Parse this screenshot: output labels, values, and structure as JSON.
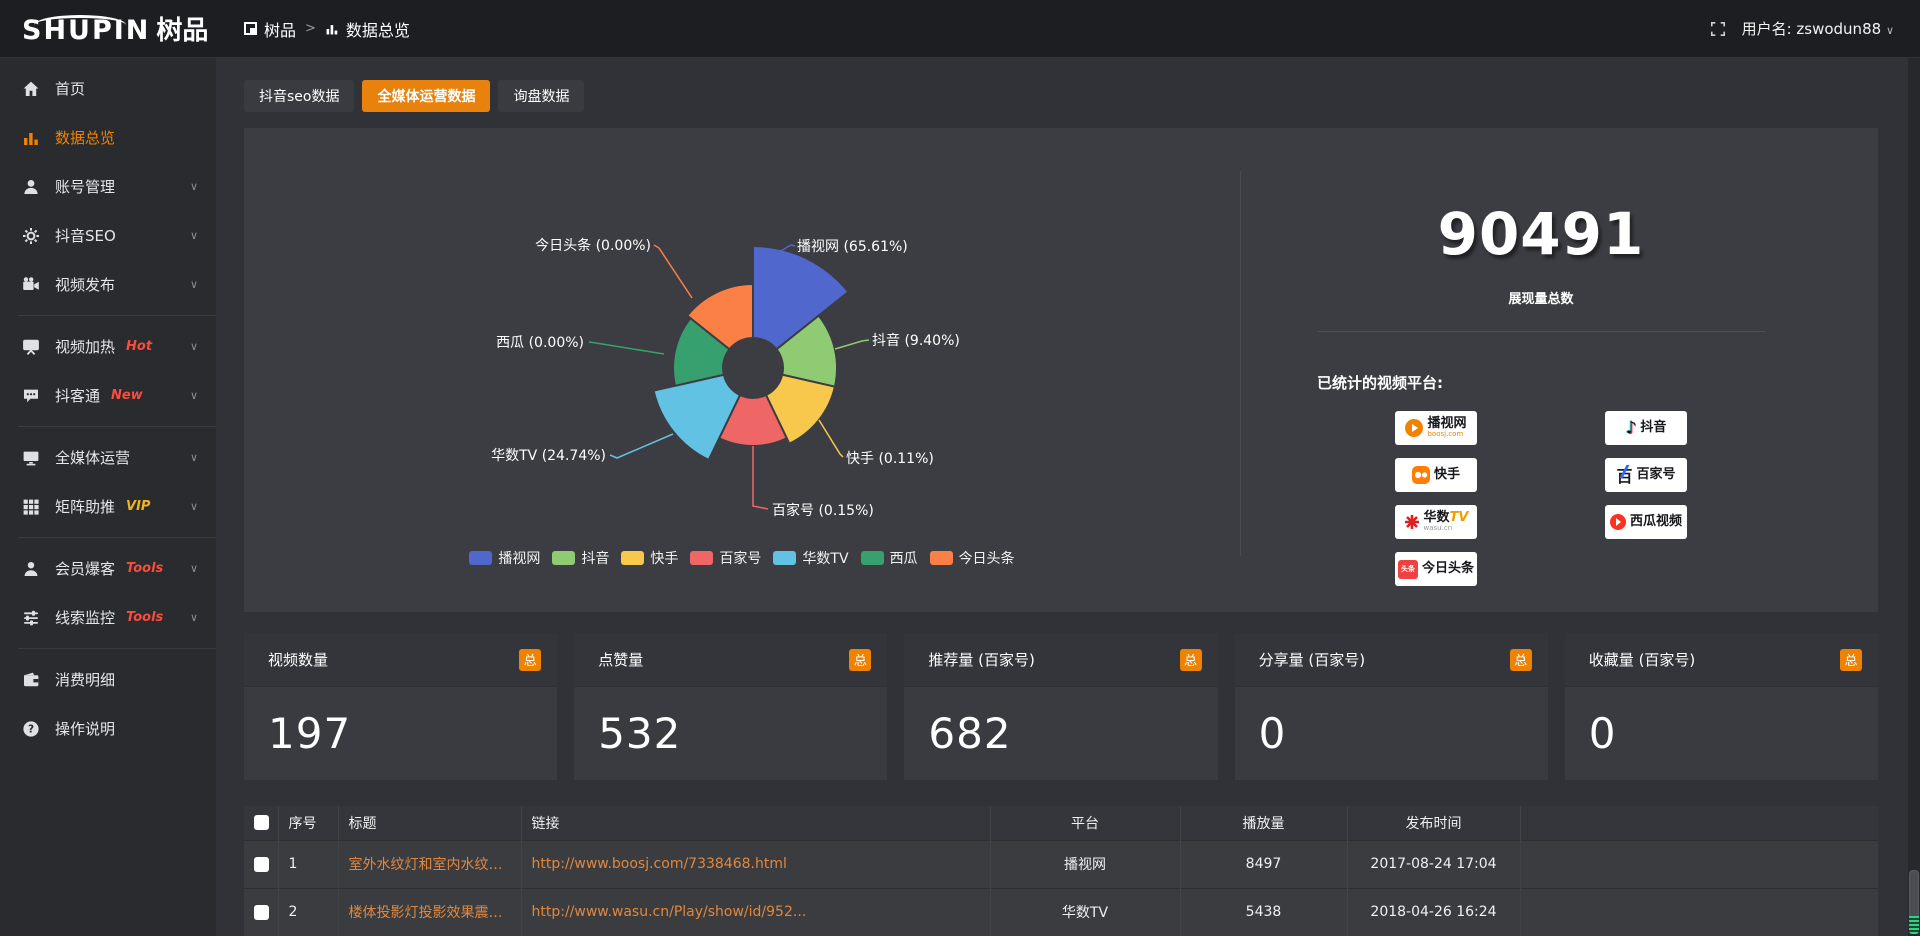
{
  "topbar": {
    "logo_en": "SHUPIN",
    "logo_cn": "树品",
    "breadcrumb": {
      "root": "树品",
      "separator": ">",
      "current": "数据总览"
    },
    "username": "用户名: zswodun88"
  },
  "sidebar": {
    "items": [
      {
        "label": "首页",
        "icon": "home",
        "active": false,
        "chevron": false,
        "badge": "",
        "badge_color": "",
        "divider_after": false
      },
      {
        "label": "数据总览",
        "icon": "chart",
        "active": true,
        "chevron": false,
        "badge": "",
        "badge_color": "",
        "divider_after": false
      },
      {
        "label": "账号管理",
        "icon": "user",
        "active": false,
        "chevron": true,
        "badge": "",
        "badge_color": "",
        "divider_after": false
      },
      {
        "label": "抖音SEO",
        "icon": "gear",
        "active": false,
        "chevron": true,
        "badge": "",
        "badge_color": "",
        "divider_after": false
      },
      {
        "label": "视频发布",
        "icon": "camera",
        "active": false,
        "chevron": true,
        "badge": "",
        "badge_color": "",
        "divider_after": true
      },
      {
        "label": "视频加热",
        "icon": "screen",
        "active": false,
        "chevron": true,
        "badge": "Hot",
        "badge_color": "#fa4b3c",
        "divider_after": false
      },
      {
        "label": "抖客通",
        "icon": "chat",
        "active": false,
        "chevron": true,
        "badge": "New",
        "badge_color": "#fa4b3c",
        "divider_after": true
      },
      {
        "label": "全媒体运营",
        "icon": "monitor",
        "active": false,
        "chevron": true,
        "badge": "",
        "badge_color": "",
        "divider_after": false
      },
      {
        "label": "矩阵助推",
        "icon": "grid",
        "active": false,
        "chevron": true,
        "badge": "VIP",
        "badge_color": "#f0b41e",
        "divider_after": true
      },
      {
        "label": "会员爆客",
        "icon": "person",
        "active": false,
        "chevron": true,
        "badge": "Tools",
        "badge_color": "#fa4b3c",
        "divider_after": false
      },
      {
        "label": "线索监控",
        "icon": "sliders",
        "active": false,
        "chevron": true,
        "badge": "Tools",
        "badge_color": "#fa4b3c",
        "divider_after": true
      },
      {
        "label": "消费明细",
        "icon": "wallet",
        "active": false,
        "chevron": false,
        "badge": "",
        "badge_color": "",
        "divider_after": false
      },
      {
        "label": "操作说明",
        "icon": "help",
        "active": false,
        "chevron": false,
        "badge": "",
        "badge_color": "",
        "divider_after": false
      }
    ]
  },
  "tabs": [
    {
      "label": "抖音seo数据",
      "active": false
    },
    {
      "label": "全媒体运营数据",
      "active": true
    },
    {
      "label": "询盘数据",
      "active": false
    }
  ],
  "chart_data": {
    "type": "pie",
    "subtype": "nightingale-rose",
    "title": "",
    "categories": [
      "播视网",
      "抖音",
      "快手",
      "百家号",
      "华数TV",
      "西瓜",
      "今日头条"
    ],
    "values_percent": [
      65.61,
      9.4,
      0.11,
      0.15,
      24.74,
      0.0,
      0.0
    ],
    "colors": [
      "#5067cd",
      "#8fcb72",
      "#f7c84b",
      "#ee6666",
      "#62c2e3",
      "#37a06f",
      "#fb8045"
    ],
    "legend": [
      "播视网",
      "抖音",
      "快手",
      "百家号",
      "华数TV",
      "西瓜",
      "今日头条"
    ],
    "legend_position": "bottom",
    "label_format": "name (percent%)"
  },
  "summary": {
    "total": "90491",
    "total_label": "展现量总数",
    "platforms_label": "已统计的视频平台:",
    "platforms": [
      {
        "name": "播视网",
        "sub": "boosj.com",
        "icon": "boosj"
      },
      {
        "name": "抖音",
        "sub": "",
        "icon": "douyin"
      },
      {
        "name": "快手",
        "sub": "",
        "icon": "kuaishou"
      },
      {
        "name": "百家号",
        "sub": "",
        "icon": "baijiahao"
      },
      {
        "name": "华数",
        "sub": "wasu.cn",
        "icon": "wasu",
        "name_suffix": "TV"
      },
      {
        "name": "西瓜视频",
        "sub": "",
        "icon": "xigua"
      },
      {
        "name": "今日头条",
        "sub": "",
        "icon": "toutiao"
      }
    ]
  },
  "stat_cards": [
    {
      "title": "视频数量",
      "badge": "总",
      "value": "197"
    },
    {
      "title": "点赞量",
      "badge": "总",
      "value": "532"
    },
    {
      "title": "推荐量 (百家号)",
      "badge": "总",
      "value": "682"
    },
    {
      "title": "分享量 (百家号)",
      "badge": "总",
      "value": "0"
    },
    {
      "title": "收藏量 (百家号)",
      "badge": "总",
      "value": "0"
    }
  ],
  "table": {
    "headers": [
      "序号",
      "标题",
      "链接",
      "平台",
      "播放量",
      "发布时间"
    ],
    "rows": [
      {
        "no": "1",
        "title": "室外水纹灯和室内水纹灯的区别和简介",
        "link": "http://www.boosj.com/7338468.html",
        "platform": "播视网",
        "views": "8497",
        "time": "2017-08-24 17:04"
      },
      {
        "no": "2",
        "title": "楼体投影灯投影效果震撼上市",
        "link": "http://www.wasu.cn/Play/show/id/952...",
        "platform": "华数TV",
        "views": "5438",
        "time": "2018-04-26 16:24"
      }
    ]
  },
  "accent": "#ef8201"
}
